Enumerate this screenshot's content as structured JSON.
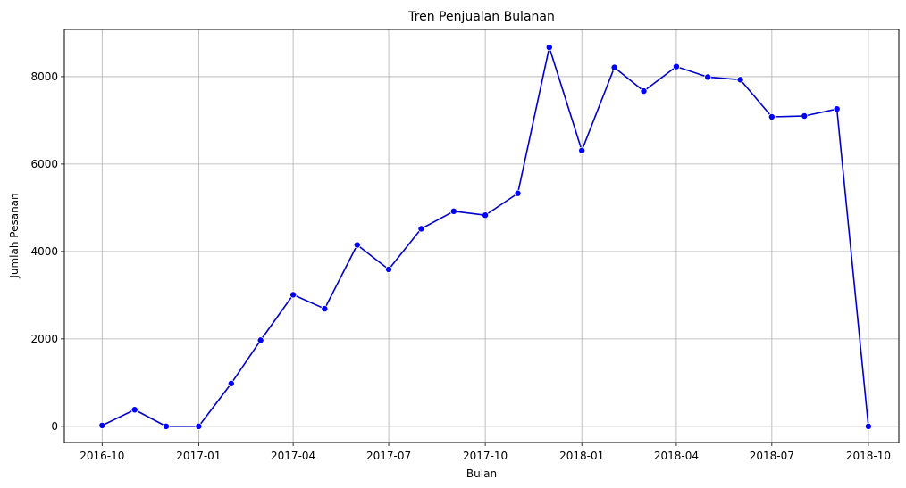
{
  "chart_data": {
    "type": "line",
    "title": "Tren Penjualan Bulanan",
    "xlabel": "Bulan",
    "ylabel": "Jumlah Pesanan",
    "x_ticks": [
      "2016-10",
      "2017-01",
      "2017-04",
      "2017-07",
      "2017-10",
      "2018-01",
      "2018-04",
      "2018-07",
      "2018-10"
    ],
    "y_ticks": [
      0,
      2000,
      4000,
      6000,
      8000
    ],
    "ylim": [
      -370,
      9080
    ],
    "xlim": [
      "2016-08-26",
      "2018-10-30"
    ],
    "grid": true,
    "line_color": "#0000cc",
    "marker_color": "#0000ff",
    "series": [
      {
        "x": [
          "2016-10",
          "2016-11",
          "2016-12",
          "2017-01",
          "2017-02",
          "2017-03",
          "2017-04",
          "2017-05",
          "2017-06",
          "2017-07",
          "2017-08",
          "2017-09",
          "2017-10",
          "2017-11",
          "2017-12",
          "2018-01",
          "2018-02",
          "2018-03",
          "2018-04",
          "2018-05",
          "2018-06",
          "2018-07",
          "2018-08",
          "2018-09",
          "2018-10"
        ],
        "y": [
          20,
          380,
          0,
          0,
          980,
          1970,
          3010,
          2690,
          4150,
          3590,
          4520,
          4920,
          4830,
          5330,
          8670,
          6310,
          8210,
          7670,
          8230,
          7990,
          7930,
          7080,
          7100,
          7260,
          0
        ]
      }
    ]
  }
}
